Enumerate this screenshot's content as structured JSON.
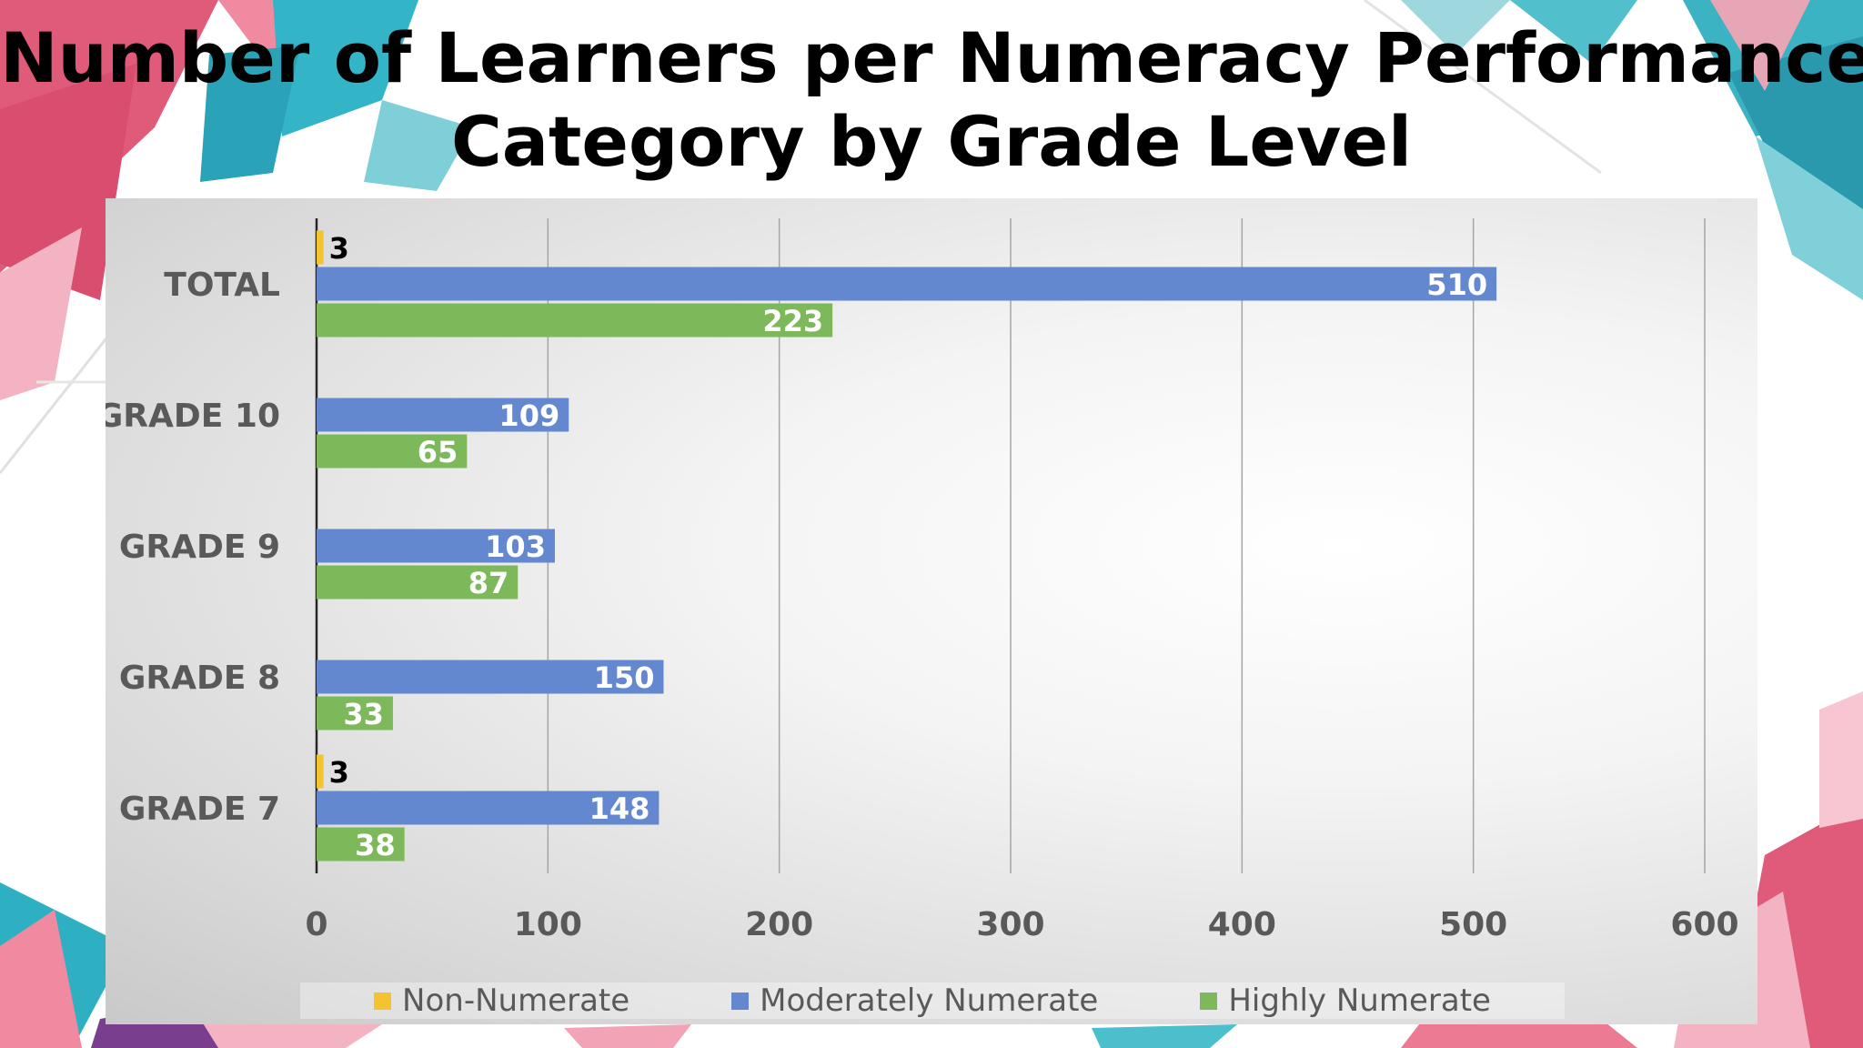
{
  "title_line1": "Number of Learners per Numeracy Performance",
  "title_line2": "Category by Grade Level",
  "colors": {
    "non_numerate": "#F4C430",
    "moderately_numerate": "#6488D0",
    "highly_numerate": "#7DB85A",
    "axis_text": "#595959",
    "grid": "#a6a6a6"
  },
  "legend": [
    {
      "label": "Non-Numerate",
      "color": "#F4C430"
    },
    {
      "label": "Moderately Numerate",
      "color": "#6488D0"
    },
    {
      "label": "Highly Numerate",
      "color": "#7DB85A"
    }
  ],
  "chart_data": {
    "type": "bar",
    "orientation": "horizontal",
    "title": "Number of Learners per Numeracy Performance Category by Grade Level",
    "categories": [
      "TOTAL",
      "GRADE 10",
      "GRADE 9",
      "GRADE 8",
      "GRADE 7"
    ],
    "series": [
      {
        "name": "Non-Numerate",
        "values": [
          3,
          null,
          null,
          null,
          3
        ]
      },
      {
        "name": "Moderately Numerate",
        "values": [
          510,
          109,
          103,
          150,
          148
        ]
      },
      {
        "name": "Highly Numerate",
        "values": [
          223,
          65,
          87,
          33,
          38
        ]
      }
    ],
    "xlim": [
      0,
      600
    ],
    "xticks": [
      0,
      100,
      200,
      300,
      400,
      500,
      600
    ],
    "grid": "vertical",
    "legend_position": "bottom",
    "data_labels": true
  }
}
